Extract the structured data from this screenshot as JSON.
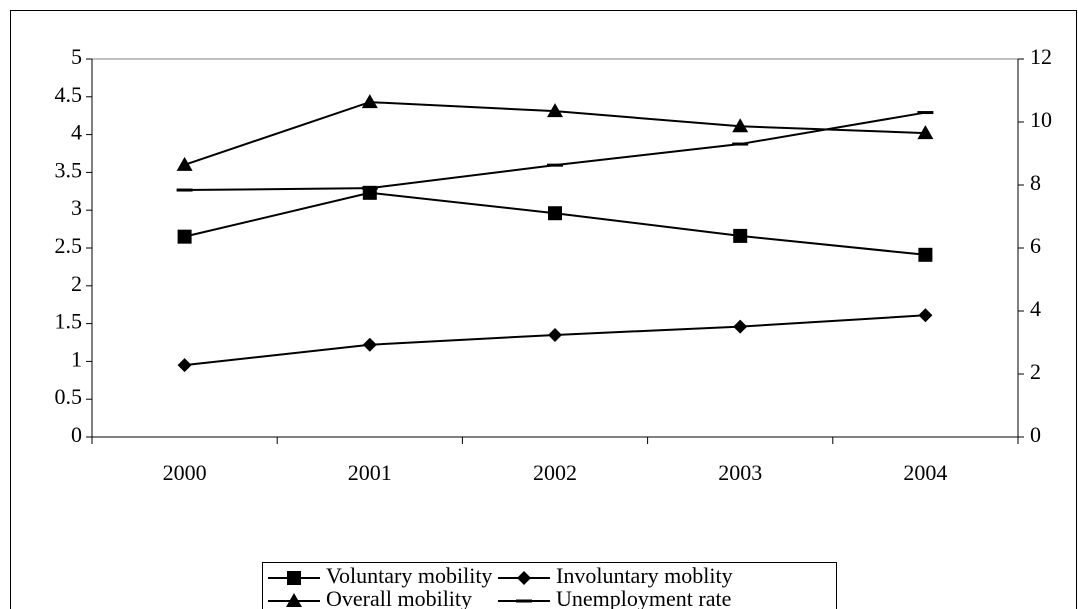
{
  "chart_data": {
    "type": "line",
    "categories": [
      "2000",
      "2001",
      "2002",
      "2003",
      "2004"
    ],
    "series": [
      {
        "name": "Voluntary mobility",
        "color": "#000000",
        "marker": "square",
        "values": [
          2.65,
          3.23,
          2.96,
          2.66,
          2.41
        ]
      },
      {
        "name": "Involuntary moblity",
        "color": "#000000",
        "marker": "diamond",
        "values": [
          0.95,
          1.22,
          1.35,
          1.46,
          1.61
        ]
      },
      {
        "name": "Overall mobility",
        "color": "#000000",
        "marker": "triangle",
        "values": [
          3.6,
          4.43,
          4.31,
          4.11,
          4.02
        ]
      },
      {
        "name": "Unemployment rate",
        "color": "#000000",
        "marker": "dash",
        "axis": "y2",
        "values": [
          7.84,
          7.9,
          8.63,
          9.3,
          10.3
        ]
      }
    ],
    "ylim": [
      0,
      5
    ],
    "yticks": [
      0,
      0.5,
      1,
      1.5,
      2,
      2.5,
      3,
      3.5,
      4,
      4.5,
      5
    ],
    "y2lim": [
      0,
      12
    ],
    "y2ticks": [
      0,
      2,
      4,
      6,
      8,
      10,
      12
    ],
    "grid": false,
    "legend": "bottom"
  }
}
